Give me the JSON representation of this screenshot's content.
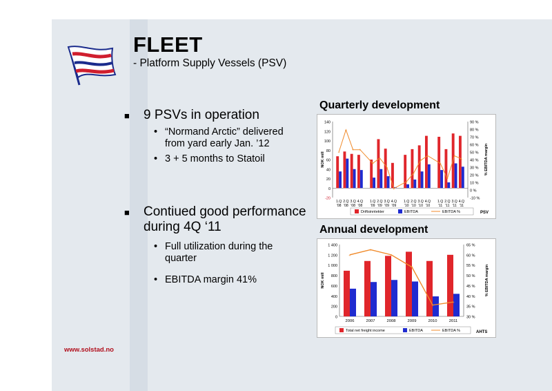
{
  "slide": {
    "title": "FLEET",
    "subtitle": "- Platform Supply Vessels (PSV)",
    "footer_url": "www.solstad.no"
  },
  "bullets": [
    {
      "text": "9 PSVs in operation",
      "sub": [
        "“Normand Arctic” delivered",
        "from yard early Jan. ’12",
        "3 + 5 months to Statoil"
      ]
    },
    {
      "text_line1": "Contiued good performance",
      "text_line2": "during 4Q ‘11",
      "sub": [
        "Full utilization during the",
        "quarter",
        "EBITDA margin 41%"
      ]
    }
  ],
  "colors": {
    "red": "#e0262b",
    "blue": "#1f2bd0",
    "orange": "#f08a2a",
    "footer_red": "#b10f1c"
  },
  "chart_data": [
    {
      "type": "bar",
      "title": "Quarterly development",
      "ylabel": "NOK mill",
      "y2label": "% EBITDA margin",
      "ylim": [
        -20,
        140
      ],
      "y2lim": [
        -10,
        90
      ],
      "yticks": [
        "140",
        "120",
        "100",
        "80",
        "60",
        "40",
        "20",
        "0",
        "-20"
      ],
      "y2ticks": [
        "90 %",
        "80 %",
        "70 %",
        "60 %",
        "50 %",
        "40 %",
        "30 %",
        "20 %",
        "10 %",
        "0 %",
        "-10 %"
      ],
      "tick_top": [
        "1.Q",
        "2.Q",
        "3.Q",
        "4.Q",
        "1.Q",
        "2.Q",
        "3.Q",
        "4.Q",
        "1.Q",
        "2.Q",
        "3.Q",
        "4.Q",
        "1.Q",
        "2.Q",
        "3.Q",
        "4.Q"
      ],
      "tick_bottom": [
        "'08",
        "'08",
        "'08",
        "'08",
        "'09",
        "'09",
        "'09",
        "'09",
        "'10",
        "'10",
        "'10",
        "'10",
        "'11",
        "'11",
        "'11",
        "'11"
      ],
      "side_label": "PSV",
      "series": [
        {
          "name": "Driftsinntekter",
          "values": [
            67,
            77,
            72,
            70,
            60,
            103,
            83,
            53,
            70,
            82,
            90,
            110,
            108,
            82,
            115,
            110
          ]
        },
        {
          "name": "EBITDA",
          "values": [
            35,
            62,
            40,
            38,
            22,
            40,
            25,
            2,
            8,
            18,
            35,
            50,
            38,
            12,
            52,
            45
          ]
        },
        {
          "name": "EBITDA %",
          "values": [
            50,
            79,
            53,
            53,
            35,
            42,
            30,
            2,
            11,
            22,
            39,
            45,
            35,
            15,
            45,
            41
          ]
        }
      ]
    },
    {
      "type": "bar",
      "title": "Annual development",
      "ylabel": "NOK mill",
      "y2label": "% EBITDA margin",
      "ylim": [
        0,
        1400
      ],
      "y2lim": [
        30,
        65
      ],
      "categories": [
        "2006",
        "2007",
        "2008",
        "2009",
        "2010",
        "2011"
      ],
      "yticks": [
        "1 400",
        "1 200",
        "1 000",
        "800",
        "600",
        "400",
        "200",
        "0"
      ],
      "y2ticks": [
        "65 %",
        "60 %",
        "55 %",
        "50 %",
        "45 %",
        "40 %",
        "35 %",
        "30 %"
      ],
      "side_label": "AHTS",
      "series": [
        {
          "name": "Total net freight income",
          "values": [
            890,
            1080,
            1180,
            1260,
            1080,
            1200
          ]
        },
        {
          "name": "EBITDA",
          "values": [
            540,
            670,
            710,
            680,
            390,
            440
          ]
        },
        {
          "name": "EBITDA %",
          "values": [
            60,
            62.5,
            60,
            54,
            35.5,
            37
          ]
        }
      ]
    }
  ]
}
